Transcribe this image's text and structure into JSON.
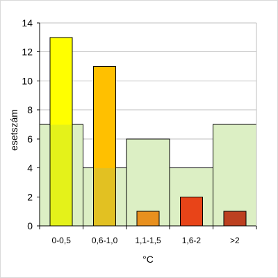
{
  "chart_data": {
    "type": "bar",
    "categories": [
      "0-0,5",
      "0,6-1,0",
      "1,1-1,5",
      "1,6-2",
      ">2"
    ],
    "ylim": [
      0,
      14
    ],
    "yticks": [
      0,
      2,
      4,
      6,
      8,
      10,
      12,
      14
    ],
    "xlabel": "°C",
    "ylabel": "esetszám",
    "grid": true,
    "series": [
      {
        "values": [
          7,
          4,
          6,
          4,
          7
        ],
        "color": "#dcefc4"
      },
      {
        "values": [
          13,
          11,
          1,
          2,
          1
        ],
        "colors": [
          "#ffff00",
          "#ffc000",
          "#e8901e",
          "#e84418",
          "#bc4020"
        ]
      }
    ],
    "overlap_colors": [
      "#e4f21a",
      "#e2c122"
    ]
  }
}
